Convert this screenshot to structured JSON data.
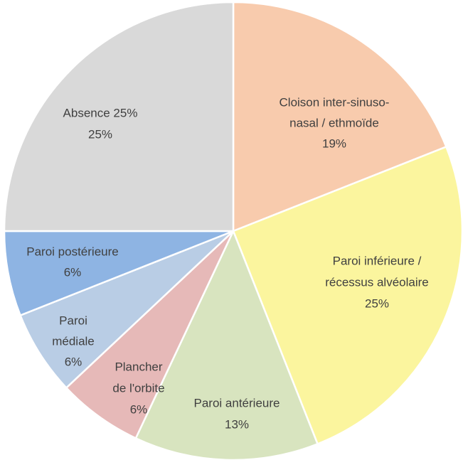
{
  "chart_data": {
    "type": "pie",
    "categories": [
      [
        "Cloison inter-sinuso-",
        "nasal / ethmoïde"
      ],
      [
        "Paroi inférieure  /",
        "récessus alvéolaire"
      ],
      [
        "Paroi antérieure"
      ],
      [
        "Plancher",
        "de l'orbite"
      ],
      [
        "Paroi",
        "médiale"
      ],
      [
        "Paroi postérieure"
      ],
      [
        "Absence 25%"
      ]
    ],
    "values": [
      19,
      25,
      13,
      6,
      6,
      6,
      25
    ],
    "value_labels": [
      "19%",
      "25%",
      "13%",
      "6%",
      "6%",
      "6%",
      "25%"
    ],
    "colors": [
      "#f8cbad",
      "#fbf59e",
      "#d8e4bf",
      "#e6b9b8",
      "#b9cde5",
      "#8eb4e3",
      "#d9d9d9"
    ]
  }
}
